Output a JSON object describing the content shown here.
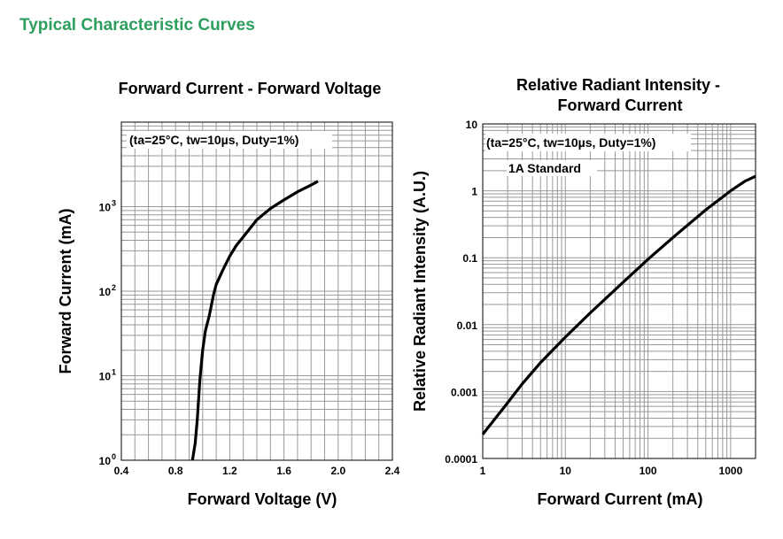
{
  "page_title": "Typical Characteristic Curves",
  "colors": {
    "title_green": "#2e9e5e",
    "grid": "#999999",
    "curve": "#000000"
  },
  "chart_data": [
    {
      "type": "line",
      "title": "Forward Current - Forward Voltage",
      "xlabel": "Forward Voltage (V)",
      "ylabel": "Forward Current (mA)",
      "xscale": "linear",
      "yscale": "log",
      "xlim": [
        0.4,
        2.4
      ],
      "ylim": [
        1,
        10000
      ],
      "xticks": [
        0.4,
        0.8,
        1.2,
        1.6,
        2.0,
        2.4
      ],
      "xtick_labels": [
        "0.4",
        "0.8",
        "1.2",
        "1.6",
        "2.0",
        "2.4"
      ],
      "yticks": [
        1,
        10,
        100,
        1000
      ],
      "ytick_labels": [
        {
          "base": "10",
          "exp": "0"
        },
        {
          "base": "10",
          "exp": "1"
        },
        {
          "base": "10",
          "exp": "2"
        },
        {
          "base": "10",
          "exp": "3"
        }
      ],
      "annotations": [
        "(ta=25°C, tw=10µs, Duty=1%)"
      ],
      "grid": true,
      "series": [
        {
          "x": [
            0.925,
            0.945,
            0.96,
            0.98,
            1.0,
            1.02,
            1.05,
            1.08,
            1.1,
            1.15,
            1.2,
            1.25,
            1.3,
            1.4,
            1.5,
            1.6,
            1.7,
            1.8,
            1.85
          ],
          "y": [
            1.0,
            1.6,
            3.0,
            9.0,
            20,
            34,
            52,
            90,
            120,
            180,
            260,
            350,
            440,
            700,
            950,
            1200,
            1500,
            1800,
            2000
          ]
        }
      ]
    },
    {
      "type": "line",
      "title": "Relative Radiant Intensity - Forward Current",
      "title_lines": [
        "Relative Radiant Intensity -",
        "Forward Current"
      ],
      "xlabel": "Forward Current (mA)",
      "ylabel": "Relative Radiant Intensity (A.U.)",
      "xscale": "log",
      "yscale": "log",
      "xlim": [
        1,
        2000
      ],
      "ylim": [
        0.0001,
        10
      ],
      "xticks": [
        1,
        10,
        100,
        1000
      ],
      "xtick_labels": [
        "1",
        "10",
        "100",
        "1000"
      ],
      "yticks": [
        0.0001,
        0.001,
        0.01,
        0.1,
        1,
        10
      ],
      "ytick_labels": [
        "0.0001",
        "0.001",
        "0.01",
        "0.1",
        "1",
        "10"
      ],
      "annotations": [
        "(ta=25°C, tw=10µs, Duty=1%)",
        "1A Standard"
      ],
      "grid": true,
      "series": [
        {
          "x": [
            1,
            2,
            3,
            5,
            10,
            20,
            50,
            100,
            200,
            500,
            1000,
            1500,
            2000
          ],
          "y": [
            0.00023,
            0.00068,
            0.0013,
            0.0027,
            0.0065,
            0.015,
            0.043,
            0.095,
            0.2,
            0.52,
            1.0,
            1.4,
            1.65
          ]
        }
      ]
    }
  ]
}
